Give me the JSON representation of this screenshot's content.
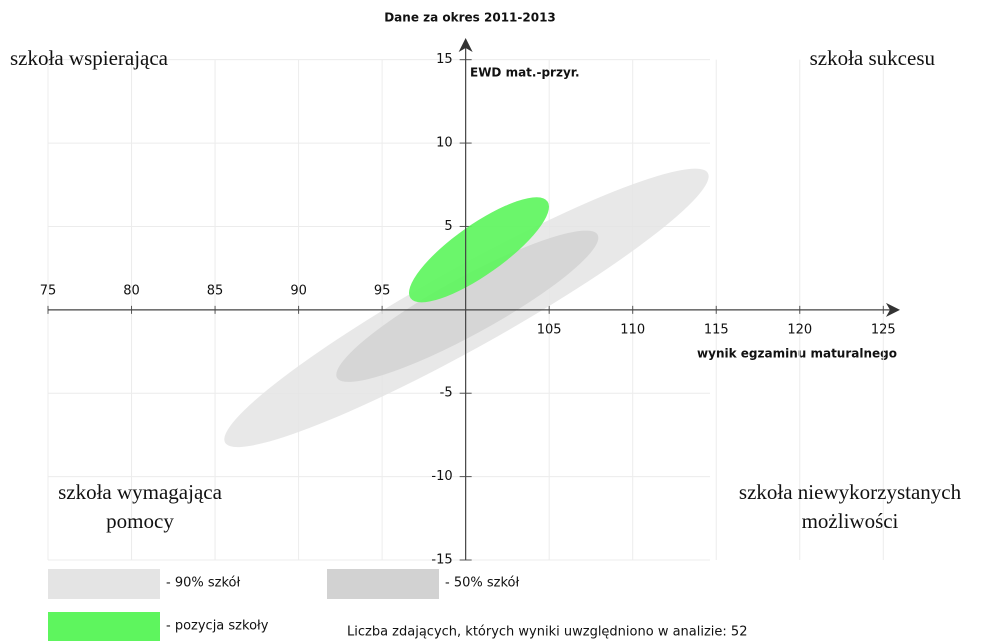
{
  "chart_data": {
    "type": "ellipse",
    "title": "Dane za okres 2011-2013",
    "y_label": "EWD mat.-przyr.",
    "x_label": "wynik egzaminu maturalnego",
    "xlim": [
      75,
      126
    ],
    "ylim": [
      -15,
      16.3
    ],
    "xticks": [
      75,
      80,
      85,
      90,
      95,
      105,
      110,
      115,
      120,
      125
    ],
    "yticks": [
      15,
      10,
      5,
      -5,
      -10,
      -15
    ],
    "y_axis_crossing": 100,
    "grid": true,
    "series": [
      {
        "name": "- 90% szkół",
        "color": "#e4e4e4",
        "x": [
          85.6,
          114.5
        ],
        "y": [
          -7.96,
          8.2
        ],
        "minor_radius": 2.4
      },
      {
        "name": "- 50% szkół",
        "color": "#d2d2d2",
        "x": [
          92.3,
          107.9
        ],
        "y": [
          -4.07,
          4.5
        ],
        "minor_radius": 1.7
      },
      {
        "name": "- pozycja szkoły",
        "color": "#5ef55e",
        "x": [
          96.7,
          104.9
        ],
        "y": [
          0.7,
          6.5
        ],
        "minor_radius": 1.5
      }
    ],
    "annotations": [
      [
        "szkoła wspierająca"
      ],
      [
        "szkoła sukcesu"
      ],
      [
        "szkoła wymagająca",
        "pomocy"
      ],
      [
        "szkoła niewykorzystanych",
        "możliwości"
      ]
    ],
    "note": "Liczba zdających, których wyniki uwzględniono w analizie: 52"
  }
}
